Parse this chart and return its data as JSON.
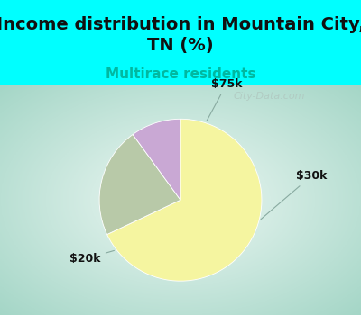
{
  "title": "Income distribution in Mountain City,\nTN (%)",
  "subtitle": "Multirace residents",
  "subtitle_color": "#00b8a0",
  "title_fontsize": 14,
  "subtitle_fontsize": 11,
  "title_color": "#111111",
  "top_bg_color": "#00ffff",
  "chart_bg_corners": "#a8ddd0",
  "chart_bg_center": "#f0faf7",
  "slices": [
    {
      "label": "$20k",
      "value": 68,
      "color": "#f5f5a0"
    },
    {
      "label": "$30k",
      "value": 22,
      "color": "#b8c9a8"
    },
    {
      "label": "$75k",
      "value": 10,
      "color": "#c9a8d4"
    }
  ],
  "label_fontsize": 9,
  "watermark": "City-Data.com",
  "watermark_color": "#b0c8c0",
  "watermark_fontsize": 8
}
